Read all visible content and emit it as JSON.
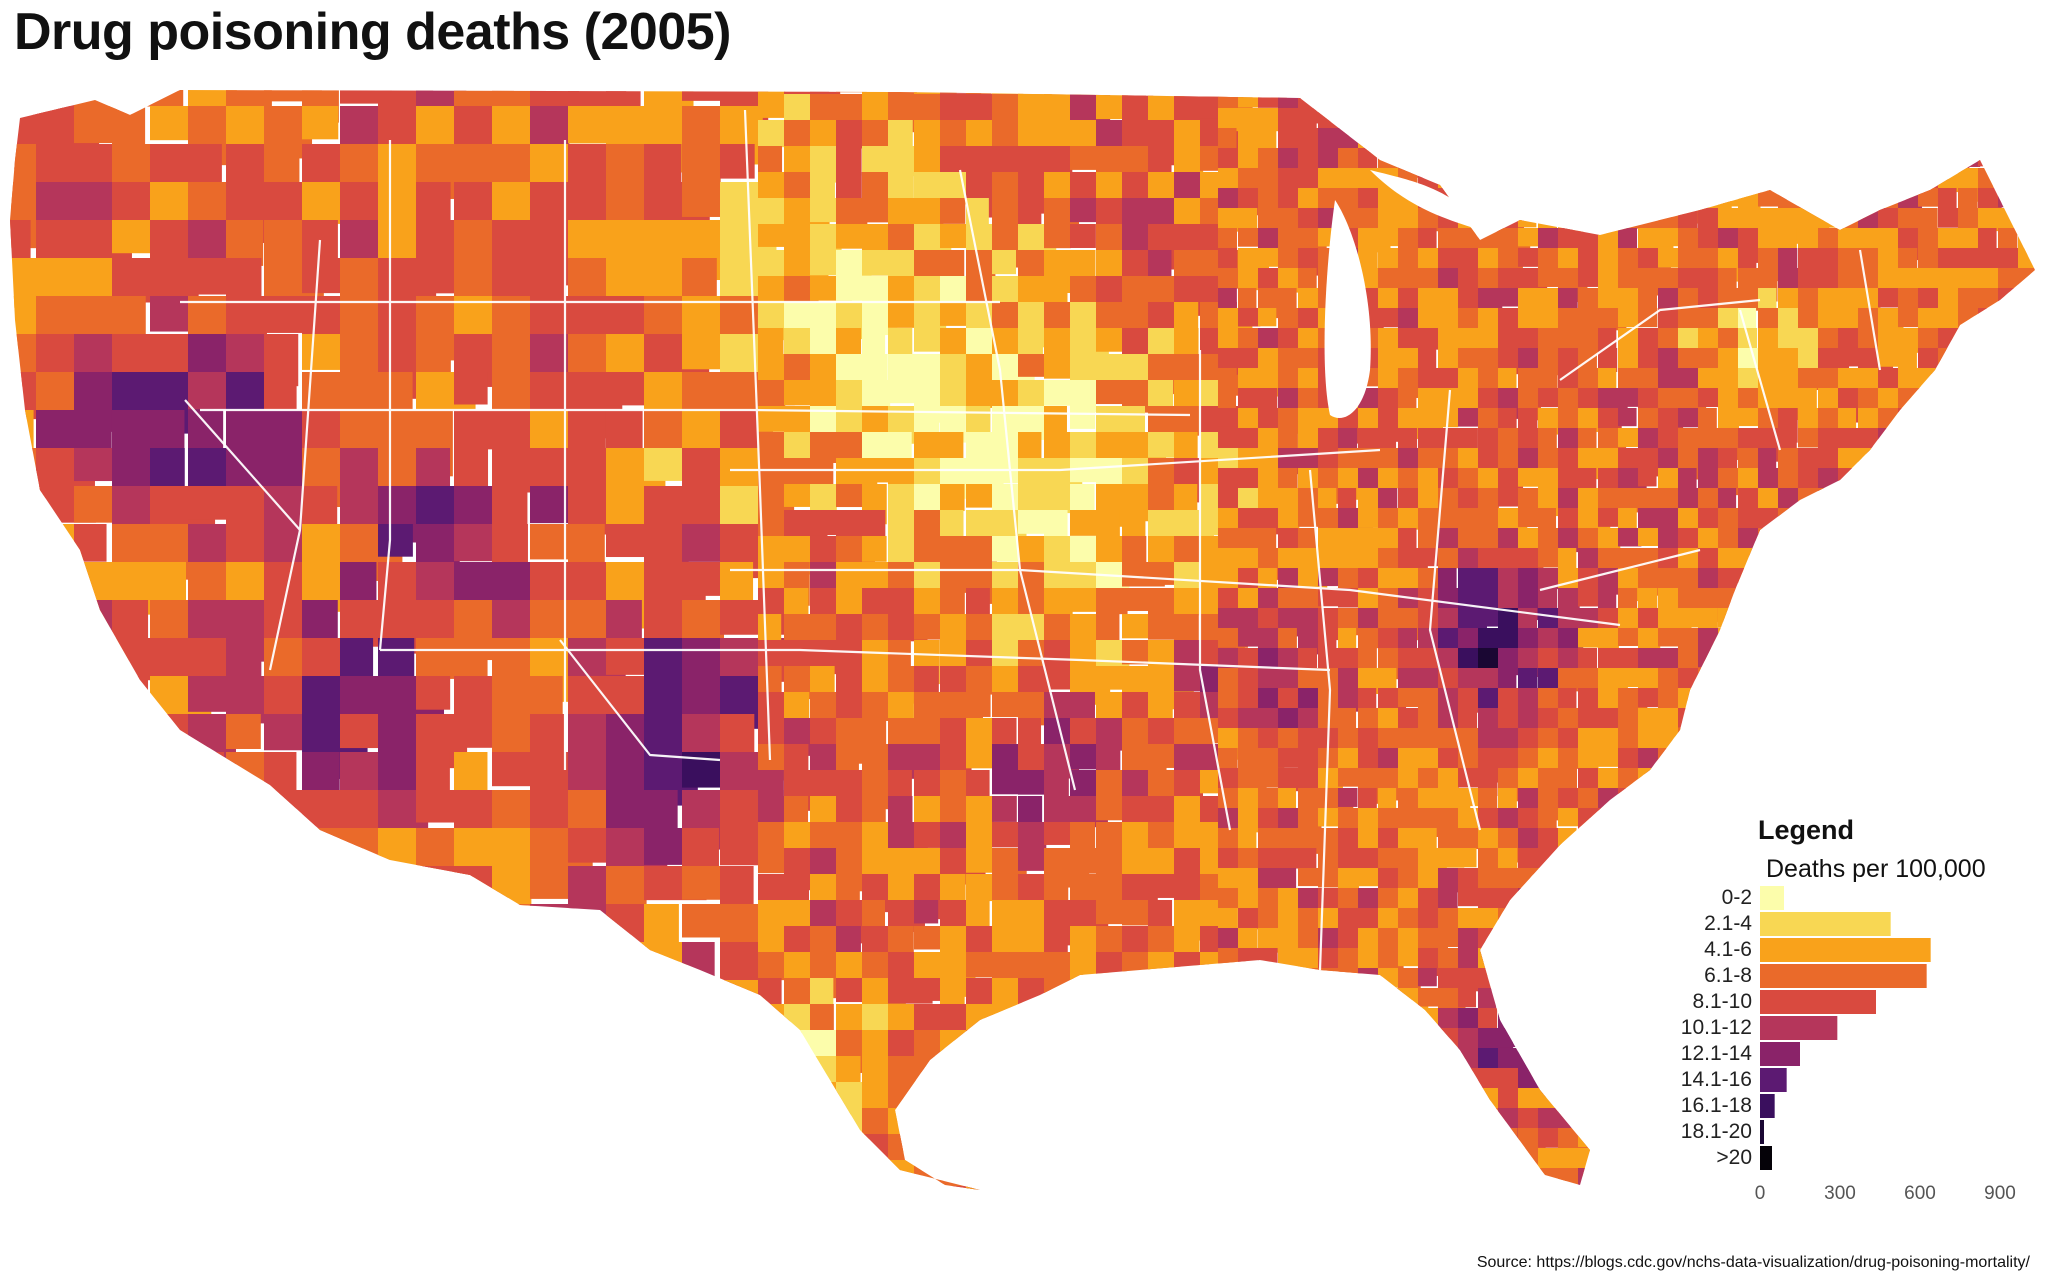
{
  "title": "Drug poisoning deaths (2005)",
  "legend": {
    "title": "Legend",
    "subtitle": "Deaths per 100,000",
    "bins": [
      {
        "label": "0-2",
        "color": "#fcfdab",
        "count": 90
      },
      {
        "label": "2.1-4",
        "color": "#f8d753",
        "count": 490
      },
      {
        "label": "4.1-6",
        "color": "#f9a21b",
        "count": 640
      },
      {
        "label": "6.1-8",
        "color": "#ea6a2a",
        "count": 625
      },
      {
        "label": "8.1-10",
        "color": "#d94a3f",
        "count": 435
      },
      {
        "label": "10.1-12",
        "color": "#b5365b",
        "count": 290
      },
      {
        "label": "12.1-14",
        "color": "#8a2369",
        "count": 150
      },
      {
        "label": "14.1-16",
        "color": "#5c1a72",
        "count": 100
      },
      {
        "label": "16.1-18",
        "color": "#3a0f5e",
        "count": 55
      },
      {
        "label": "18.1-20",
        "color": "#1a0733",
        "count": 15
      },
      {
        "label": ">20",
        "color": "#050208",
        "count": 45
      }
    ],
    "axis_ticks": [
      "0",
      "300",
      "600",
      "900"
    ],
    "axis_max": 900
  },
  "source": "Source: https://blogs.cdc.gov/nchs-data-visualization/drug-poisoning-mortality/"
}
